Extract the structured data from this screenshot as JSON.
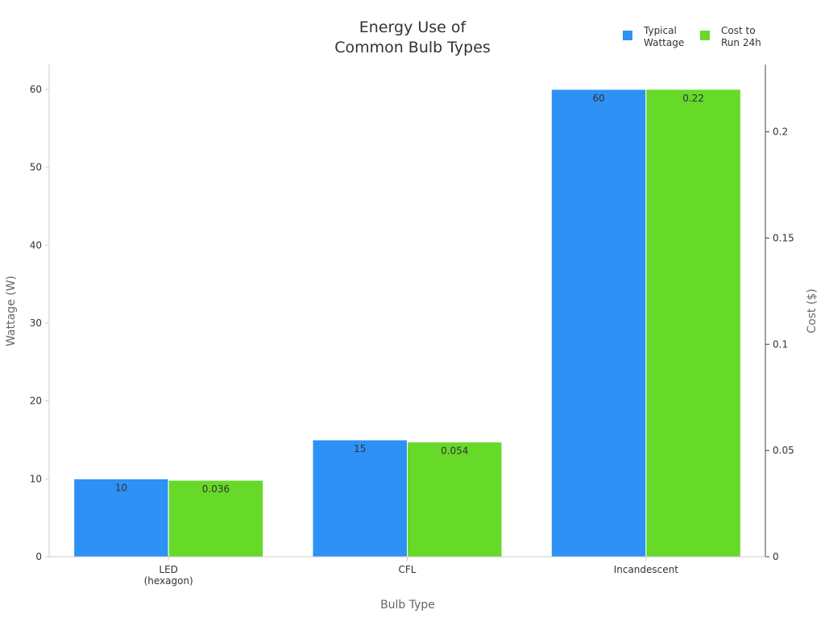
{
  "chart_data": {
    "type": "bar",
    "title": "Energy Use of\nCommon Bulb Types",
    "xlabel": "Bulb Type",
    "ylabel": "Wattage (W)",
    "y2label": "Cost ($)",
    "categories": [
      "LED\n(hexagon)",
      "CFL",
      "Incandescent"
    ],
    "ylim": [
      0,
      63.2
    ],
    "y2lim": [
      0,
      0.2317
    ],
    "yticks": [
      0,
      10,
      20,
      30,
      40,
      50,
      60
    ],
    "y2ticks": [
      0,
      0.05,
      0.1,
      0.15,
      0.2
    ],
    "y2tick_labels": [
      "0",
      "0.05",
      "0.1",
      "0.15",
      "0.2"
    ],
    "grid": false,
    "legend_position": "top-right",
    "series": [
      {
        "name": "Typical\nWattage",
        "axis": "left",
        "color": "#2e91f5",
        "values": [
          10,
          15,
          60
        ],
        "labels": [
          "10",
          "15",
          "60"
        ]
      },
      {
        "name": "Cost to\nRun 24h",
        "axis": "right",
        "color": "#66d929",
        "values": [
          0.036,
          0.054,
          0.22
        ],
        "labels": [
          "0.036",
          "0.054",
          "0.22"
        ]
      }
    ]
  }
}
